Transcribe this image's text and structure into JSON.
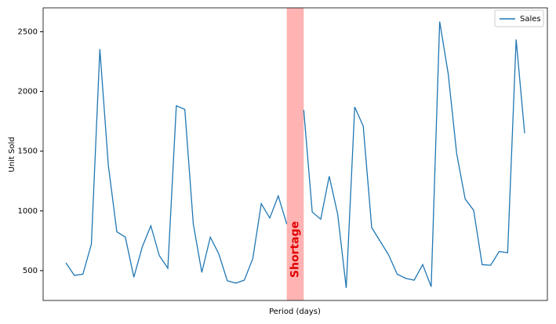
{
  "chart_data": {
    "type": "line",
    "xlabel": "Period (days)",
    "ylabel": "Unit Sold",
    "categories": [
      null,
      null,
      null,
      null,
      null,
      null,
      null,
      null,
      null,
      null,
      null,
      null,
      null,
      null,
      null,
      null,
      null,
      null,
      null,
      null,
      null,
      null,
      null,
      null,
      null,
      null,
      null,
      null,
      null,
      null,
      null,
      null,
      null,
      null,
      null,
      null,
      null,
      null,
      null,
      null,
      null,
      null,
      null,
      null,
      null,
      null,
      null,
      null,
      null,
      null,
      null,
      null,
      null,
      null,
      null
    ],
    "series": [
      {
        "name": "Sales",
        "color": "#1f77b4",
        "values": [
          565,
          460,
          470,
          720,
          2355,
          1380,
          825,
          780,
          445,
          700,
          875,
          625,
          520,
          1880,
          1850,
          890,
          485,
          780,
          640,
          415,
          395,
          420,
          600,
          1060,
          940,
          1125,
          890,
          null,
          1845,
          990,
          930,
          1290,
          970,
          355,
          1870,
          1710,
          860,
          745,
          630,
          470,
          435,
          420,
          550,
          365,
          2585,
          2150,
          1480,
          1100,
          1005,
          550,
          545,
          660,
          650,
          2435,
          1650
        ]
      }
    ],
    "highlight": {
      "label": "Shortage",
      "from": 26,
      "to": 28,
      "color": "#ffb3b3",
      "label_color": "#e00000"
    },
    "ylim": [
      250,
      2700
    ],
    "yticks": [
      500,
      1000,
      1500,
      2000,
      2500
    ],
    "legend": "upper right"
  }
}
